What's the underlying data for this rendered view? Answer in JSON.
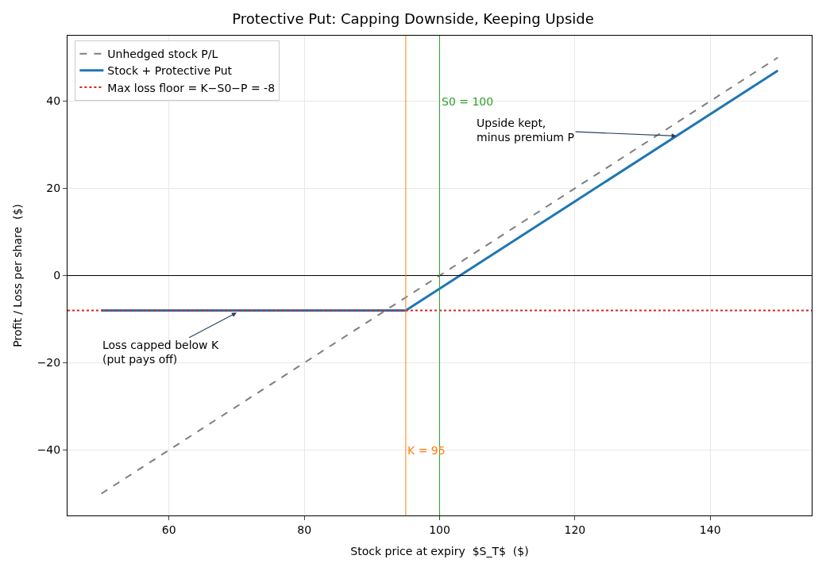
{
  "chart_data": {
    "type": "line",
    "title": "Protective Put: Capping Downside, Keeping Upside",
    "xlabel": "Stock price at expiry  $S_T$  ($)",
    "ylabel": "Profit / Loss per share  ($)",
    "series": [
      {
        "name": "Unhedged stock P/L",
        "color": "#7f7f7f",
        "line_style": "dashed",
        "x": [
          50,
          150
        ],
        "values": [
          -50,
          50
        ]
      },
      {
        "name": "Stock + Protective Put",
        "color": "#1f77b4",
        "line_style": "solid",
        "x": [
          50,
          95,
          150
        ],
        "values": [
          -8,
          -8,
          47
        ]
      }
    ],
    "ref_lines": [
      {
        "axis": "y",
        "value": -8,
        "label": "Max loss floor = K−S0−P = -8",
        "color": "#d62728",
        "line_style": "dotted"
      },
      {
        "axis": "y",
        "value": 0,
        "color": "#000000",
        "line_style": "solid"
      },
      {
        "axis": "x",
        "value": 95,
        "color": "#ff7f0e",
        "line_style": "solid"
      },
      {
        "axis": "x",
        "value": 100,
        "color": "#2ca02c",
        "line_style": "solid"
      }
    ],
    "annotations": [
      {
        "text": "K = 95",
        "x": 95,
        "y": -40
      },
      {
        "text": "S0 = 100",
        "x": 100,
        "y": 40
      },
      {
        "text": "Upside kept,\nminus premium P",
        "x": 135,
        "y": 32
      },
      {
        "text": "Loss capped below K\n(put pays off)",
        "x": 70,
        "y": -8.5
      }
    ],
    "xlim": [
      45,
      155
    ],
    "ylim": [
      -55,
      55
    ],
    "xticks": [
      60,
      80,
      100,
      120,
      140
    ],
    "yticks": [
      {
        "value": -40,
        "label": "−40"
      },
      {
        "value": -20,
        "label": "−20"
      },
      0,
      20,
      40
    ],
    "grid": true,
    "legend": "top left"
  }
}
